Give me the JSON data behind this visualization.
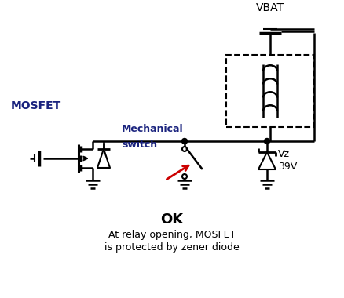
{
  "title": "OK",
  "subtitle1": "At relay opening, MOSFET",
  "subtitle2": "is protected by zener diode",
  "label_mosfet": "MOSFET",
  "label_vbat": "VBAT",
  "label_mech": "Mechanical",
  "label_switch": "switch",
  "label_vz": "Vz",
  "label_39v": "39V",
  "bg_color": "#ffffff",
  "line_color": "#000000",
  "red_color": "#cc0000",
  "blue_color": "#1a237e",
  "title_color": "#000000",
  "mosfet_label_color": "#1a237e",
  "figsize": [
    4.38,
    3.8
  ],
  "dpi": 100
}
